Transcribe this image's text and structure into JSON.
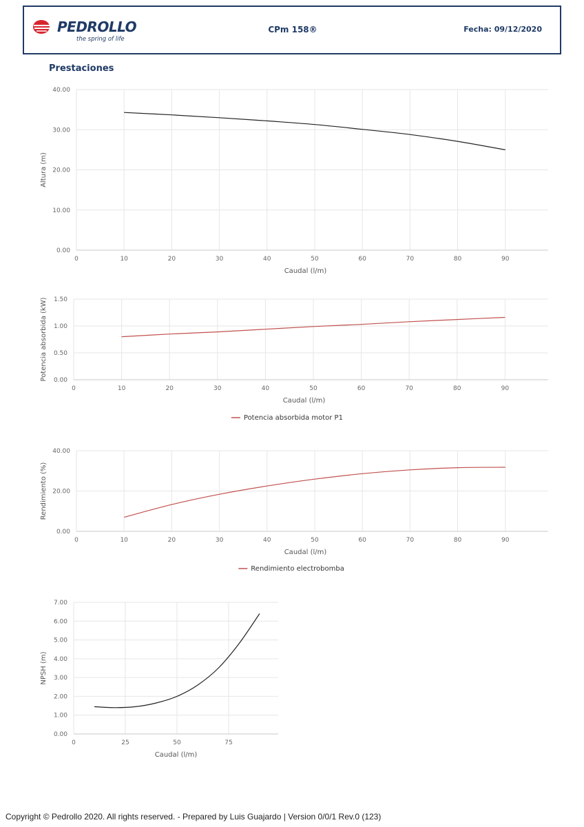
{
  "header": {
    "brand": "PEDROLLO",
    "tagline": "the spring of life",
    "model": "CPm 158®",
    "date": "Fecha: 09/12/2020",
    "brand_color": "#1f3a66",
    "logo_accent": "#d7262e"
  },
  "section_title": "Prestaciones",
  "chart_data": [
    {
      "type": "line",
      "xlabel": "Caudal (l/m)",
      "ylabel": "Altura (m)",
      "xlim": [
        0,
        99
      ],
      "ylim": [
        0,
        40
      ],
      "x_ticks": [
        0,
        10,
        20,
        30,
        40,
        50,
        60,
        70,
        80,
        90
      ],
      "y_ticks": [
        0,
        10,
        20,
        30,
        40
      ],
      "y_decimals": 2,
      "series": [
        {
          "name": "",
          "color": "#222222",
          "x": [
            10,
            20,
            30,
            40,
            50,
            60,
            70,
            80,
            90
          ],
          "values": [
            34.3,
            33.7,
            33.0,
            32.2,
            31.3,
            30.1,
            28.8,
            27.1,
            25.0
          ]
        }
      ]
    },
    {
      "type": "line",
      "xlabel": "Caudal (l/m)",
      "ylabel": "Potencia absorbida (kW)",
      "xlim": [
        0,
        99
      ],
      "ylim": [
        0,
        1.5
      ],
      "x_ticks": [
        0,
        10,
        20,
        30,
        40,
        50,
        60,
        70,
        80,
        90
      ],
      "y_ticks": [
        0,
        0.5,
        1.0,
        1.5
      ],
      "y_decimals": 2,
      "series": [
        {
          "name": "Potencia absorbida motor P1",
          "color": "#c0504d",
          "x": [
            10,
            20,
            30,
            40,
            50,
            60,
            70,
            80,
            90
          ],
          "values": [
            0.8,
            0.85,
            0.89,
            0.94,
            0.99,
            1.03,
            1.08,
            1.12,
            1.16
          ]
        }
      ],
      "legend": "bottom"
    },
    {
      "type": "line",
      "xlabel": "Caudal (l/m)",
      "ylabel": "Rendimiento (%)",
      "xlim": [
        0,
        99
      ],
      "ylim": [
        0,
        40
      ],
      "x_ticks": [
        0,
        10,
        20,
        30,
        40,
        50,
        60,
        70,
        80,
        90
      ],
      "y_ticks": [
        0,
        20,
        40
      ],
      "y_decimals": 2,
      "series": [
        {
          "name": "Rendimiento electrobomba",
          "color": "#c0504d",
          "x": [
            10,
            20,
            30,
            40,
            50,
            60,
            70,
            80,
            90
          ],
          "values": [
            7.0,
            13.3,
            18.4,
            22.5,
            25.9,
            28.6,
            30.5,
            31.6,
            31.8
          ]
        }
      ],
      "legend": "bottom"
    },
    {
      "type": "line",
      "xlabel": "Caudal (l/m)",
      "ylabel": "NPSH (m)",
      "xlim": [
        0,
        99
      ],
      "ylim": [
        0,
        7
      ],
      "x_ticks": [
        0,
        25,
        50,
        75
      ],
      "y_ticks": [
        0,
        1,
        2,
        3,
        4,
        5,
        6,
        7
      ],
      "y_decimals": 2,
      "series": [
        {
          "name": "",
          "color": "#222222",
          "x": [
            10,
            20,
            30,
            40,
            50,
            60,
            70,
            80,
            90
          ],
          "values": [
            1.45,
            1.4,
            1.45,
            1.65,
            2.0,
            2.6,
            3.5,
            4.8,
            6.4
          ]
        }
      ]
    }
  ],
  "footer": "Copyright © Pedrollo 2020. All rights reserved. - Prepared by Luis Guajardo | Version 0/0/1 Rev.0 (123)"
}
